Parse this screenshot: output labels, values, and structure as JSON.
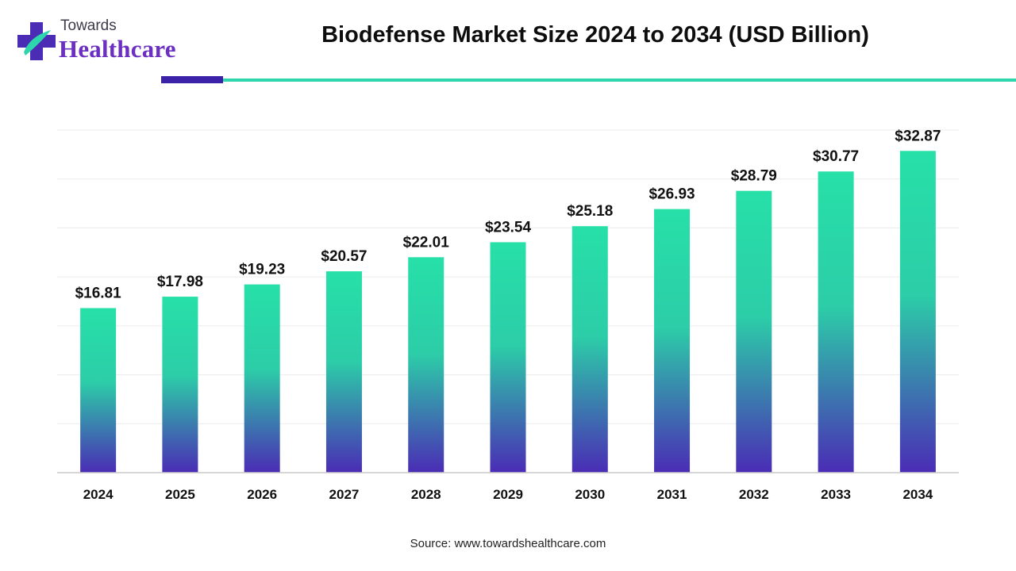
{
  "brand": {
    "line1": "Towards",
    "line2": "Healthcare"
  },
  "header": {
    "title": "Biodefense Market Size 2024 to 2034 (USD Billion)"
  },
  "footer": {
    "source": "Source: www.towardshealthcare.com"
  },
  "colors": {
    "bar_top": "#27e0a8",
    "bar_bottom": "#4a2cb5",
    "accent_purple": "#3b22a8",
    "accent_teal": "#2ed6ad"
  },
  "chart_data": {
    "type": "bar",
    "title": "Biodefense Market Size 2024 to 2034 (USD Billion)",
    "categories": [
      "2024",
      "2025",
      "2026",
      "2027",
      "2028",
      "2029",
      "2030",
      "2031",
      "2032",
      "2033",
      "2034"
    ],
    "values": [
      16.81,
      17.98,
      19.23,
      20.57,
      22.01,
      23.54,
      25.18,
      26.93,
      28.79,
      30.77,
      32.87
    ],
    "labels": [
      "$16.81",
      "$17.98",
      "$19.23",
      "$20.57",
      "$22.01",
      "$23.54",
      "$25.18",
      "$26.93",
      "$28.79",
      "$30.77",
      "$32.87"
    ],
    "xlabel": "",
    "ylabel": "",
    "ylim": [
      0,
      35
    ],
    "grid": true,
    "legend": "none"
  }
}
